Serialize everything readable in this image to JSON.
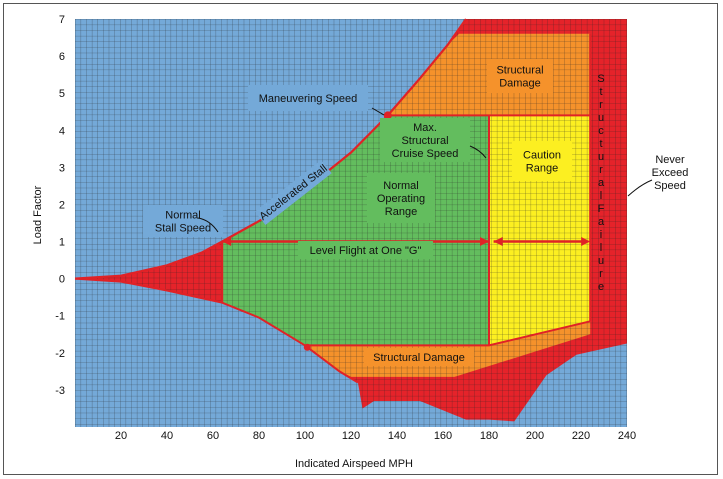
{
  "chart_data": {
    "type": "area",
    "xlabel": "Indicated Airspeed MPH",
    "ylabel": "Load Factor",
    "xlim": [
      0,
      240
    ],
    "ylim": [
      -4,
      7
    ],
    "x_ticks": [
      "20",
      "40",
      "60",
      "80",
      "100",
      "120",
      "140",
      "160",
      "180",
      "200",
      "220",
      "240"
    ],
    "y_ticks": [
      "7",
      "6",
      "5",
      "4",
      "3",
      "2",
      "1",
      "0",
      "-1",
      "-2",
      "-3"
    ],
    "grid": true,
    "regions": {
      "normal_operating": "Normal Operating Range",
      "caution": "Caution Range",
      "structural_damage_top": "Structural Damage",
      "structural_damage_bottom": "Structural Damage",
      "structural_failure": "Structural Failure"
    },
    "annotations": {
      "maneuvering_speed": "Maneuvering Speed",
      "max_structural_cruise": "Max. Structural Cruise Speed",
      "normal_stall": "Normal Stall Speed",
      "accelerated_stall": "Accelerated Stall",
      "level_flight": "Level Flight at One \"G\"",
      "never_exceed": "Never Exceed Speed"
    },
    "key_points": {
      "normal_stall_speed": [
        64,
        1
      ],
      "maneuvering_speed": [
        136,
        4.4
      ],
      "max_structural_cruise_speed": [
        180,
        4.4
      ],
      "never_exceed_speed": [
        225,
        4.4
      ]
    },
    "colors": {
      "background": "#74a9d8",
      "normal": "#63bd5e",
      "caution": "#fcef21",
      "damage": "#f5922b",
      "failure": "#e5232a",
      "envelope_line": "#e02226",
      "label_box": "#74a9d8"
    }
  }
}
